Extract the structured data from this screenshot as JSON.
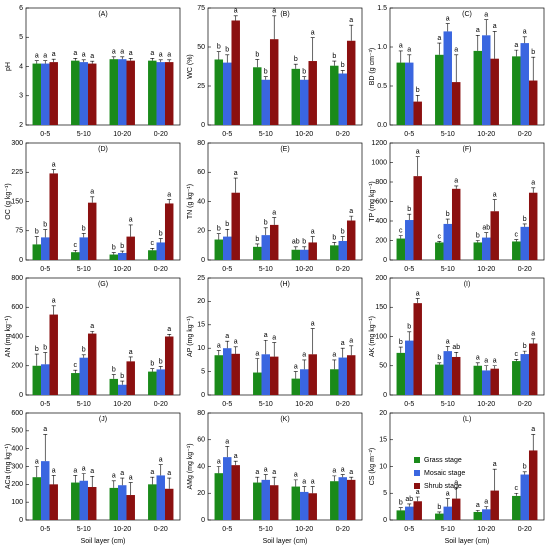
{
  "chart_data": [
    {
      "type": "bar",
      "title": "(A)",
      "y_label": "pH",
      "categories": [
        "0-5",
        "5-10",
        "10-20",
        "0-20"
      ],
      "ylim": [
        2,
        6
      ],
      "yticks": [
        2,
        3,
        4,
        5,
        6
      ],
      "series": [
        {
          "color": "#1a8a1a",
          "values": [
            4.1,
            4.2,
            4.25,
            4.2
          ],
          "errors": [
            0.1,
            0.08,
            0.08,
            0.08
          ],
          "letters": [
            "a",
            "a",
            "a",
            "a"
          ]
        },
        {
          "color": "#3a66e0",
          "values": [
            4.1,
            4.15,
            4.25,
            4.15
          ],
          "errors": [
            0.1,
            0.08,
            0.08,
            0.08
          ],
          "letters": [
            "a",
            "a",
            "a",
            "a"
          ]
        },
        {
          "color": "#8b1010",
          "values": [
            4.15,
            4.1,
            4.2,
            4.15
          ],
          "errors": [
            0.1,
            0.08,
            0.08,
            0.08
          ],
          "letters": [
            "a",
            "a",
            "a",
            "a"
          ]
        }
      ]
    },
    {
      "type": "bar",
      "title": "(B)",
      "y_label": "WC (%)",
      "categories": [
        "0-5",
        "5-10",
        "10-20",
        "0-20"
      ],
      "ylim": [
        0,
        75
      ],
      "yticks": [
        0,
        25,
        50,
        75
      ],
      "series": [
        {
          "color": "#1a8a1a",
          "values": [
            42,
            37,
            36,
            38
          ],
          "errors": [
            5,
            5,
            3,
            3
          ],
          "letters": [
            "b",
            "b",
            "b",
            "b"
          ]
        },
        {
          "color": "#3a66e0",
          "values": [
            40,
            29,
            29,
            33
          ],
          "errors": [
            5,
            2,
            2,
            2
          ],
          "letters": [
            "b",
            "b",
            "b",
            "b"
          ]
        },
        {
          "color": "#8b1010",
          "values": [
            67,
            55,
            41,
            54
          ],
          "errors": [
            3,
            15,
            15,
            10
          ],
          "letters": [
            "a",
            "a",
            "a",
            "a"
          ]
        }
      ]
    },
    {
      "type": "bar",
      "title": "(C)",
      "y_label": "BD (g cm⁻³)",
      "categories": [
        "0-5",
        "5-10",
        "10-20",
        "0-20"
      ],
      "ylim": [
        0,
        1.5
      ],
      "yticks": [
        {
          "value": 0,
          "label": "0.0"
        },
        {
          "value": 0.5,
          "label": "0.5"
        },
        {
          "value": 1,
          "label": "1.0"
        },
        {
          "value": 1.5,
          "label": "1.5"
        }
      ],
      "series": [
        {
          "color": "#1a8a1a",
          "values": [
            0.8,
            0.9,
            0.95,
            0.88
          ],
          "errors": [
            0.15,
            0.15,
            0.2,
            0.08
          ],
          "letters": [
            "a",
            "a",
            "a",
            "a"
          ]
        },
        {
          "color": "#3a66e0",
          "values": [
            0.8,
            1.2,
            1.15,
            1.05
          ],
          "errors": [
            0.1,
            0.1,
            0.2,
            0.08
          ],
          "letters": [
            "a",
            "a",
            "a",
            "a"
          ]
        },
        {
          "color": "#8b1010",
          "values": [
            0.3,
            0.55,
            0.85,
            0.57
          ],
          "errors": [
            0.08,
            0.35,
            0.35,
            0.3
          ],
          "letters": [
            "b",
            "a",
            "a",
            "b"
          ]
        }
      ]
    },
    {
      "type": "bar",
      "title": "(D)",
      "y_label": "OC (g kg⁻¹)",
      "categories": [
        "0-5",
        "5-10",
        "10-20",
        "0-20"
      ],
      "ylim": [
        0,
        300
      ],
      "yticks": [
        0,
        75,
        150,
        225,
        300
      ],
      "series": [
        {
          "color": "#1a8a1a",
          "values": [
            40,
            20,
            14,
            25
          ],
          "errors": [
            20,
            5,
            5,
            5
          ],
          "letters": [
            "b",
            "c",
            "b",
            "c"
          ]
        },
        {
          "color": "#3a66e0",
          "values": [
            58,
            58,
            18,
            45
          ],
          "errors": [
            20,
            10,
            5,
            10
          ],
          "letters": [
            "b",
            "b",
            "b",
            "b"
          ]
        },
        {
          "color": "#8b1010",
          "values": [
            222,
            147,
            60,
            145
          ],
          "errors": [
            10,
            15,
            30,
            10
          ],
          "letters": [
            "a",
            "a",
            "a",
            "a"
          ]
        }
      ]
    },
    {
      "type": "bar",
      "title": "(E)",
      "y_label": "TN (g kg⁻¹)",
      "categories": [
        "0-5",
        "5-10",
        "10-20",
        "0-20"
      ],
      "ylim": [
        0,
        80
      ],
      "yticks": [
        0,
        20,
        40,
        60,
        80
      ],
      "series": [
        {
          "color": "#1a8a1a",
          "values": [
            14,
            9,
            7,
            10
          ],
          "errors": [
            4,
            2,
            2,
            2
          ],
          "letters": [
            "b",
            "b",
            "ab",
            "b"
          ]
        },
        {
          "color": "#3a66e0",
          "values": [
            16,
            17,
            7,
            13
          ],
          "errors": [
            5,
            5,
            2,
            3
          ],
          "letters": [
            "b",
            "b",
            "b",
            "b"
          ]
        },
        {
          "color": "#8b1010",
          "values": [
            46,
            24,
            12,
            27
          ],
          "errors": [
            10,
            5,
            4,
            3
          ],
          "letters": [
            "a",
            "a",
            "a",
            "a"
          ]
        }
      ]
    },
    {
      "type": "bar",
      "title": "(F)",
      "y_label": "TP (mg kg⁻¹)",
      "categories": [
        "0-5",
        "5-10",
        "10-20",
        "0-20"
      ],
      "ylim": [
        0,
        1200
      ],
      "yticks": [
        0,
        200,
        400,
        600,
        800,
        1000,
        1200
      ],
      "series": [
        {
          "color": "#1a8a1a",
          "values": [
            220,
            180,
            180,
            190
          ],
          "errors": [
            30,
            10,
            20,
            20
          ],
          "letters": [
            "c",
            "c",
            "b",
            "c"
          ]
        },
        {
          "color": "#3a66e0",
          "values": [
            410,
            370,
            230,
            340
          ],
          "errors": [
            60,
            50,
            50,
            30
          ],
          "letters": [
            "b",
            "b",
            "ab",
            "b"
          ]
        },
        {
          "color": "#8b1010",
          "values": [
            860,
            730,
            500,
            690
          ],
          "errors": [
            200,
            30,
            120,
            50
          ],
          "letters": [
            "a",
            "a",
            "a",
            "a"
          ]
        }
      ]
    },
    {
      "type": "bar",
      "title": "(G)",
      "y_label": "AN (mg kg⁻¹)",
      "categories": [
        "0-5",
        "5-10",
        "10-20",
        "0-20"
      ],
      "ylim": [
        0,
        800
      ],
      "yticks": [
        0,
        200,
        400,
        600,
        800
      ],
      "series": [
        {
          "color": "#1a8a1a",
          "values": [
            200,
            150,
            110,
            160
          ],
          "errors": [
            80,
            20,
            30,
            20
          ],
          "letters": [
            "b",
            "c",
            "b",
            "b"
          ]
        },
        {
          "color": "#3a66e0",
          "values": [
            210,
            255,
            70,
            175
          ],
          "errors": [
            80,
            20,
            25,
            20
          ],
          "letters": [
            "b",
            "b",
            "b",
            "b"
          ]
        },
        {
          "color": "#8b1010",
          "values": [
            550,
            420,
            230,
            400
          ],
          "errors": [
            60,
            15,
            30,
            15
          ],
          "letters": [
            "a",
            "a",
            "a",
            "a"
          ]
        }
      ]
    },
    {
      "type": "bar",
      "title": "(H)",
      "y_label": "AP (mg kg⁻¹)",
      "categories": [
        "0-5",
        "5-10",
        "10-20",
        "0-20"
      ],
      "ylim": [
        0,
        25
      ],
      "yticks": [
        0,
        5,
        10,
        15,
        20,
        25
      ],
      "series": [
        {
          "color": "#1a8a1a",
          "values": [
            8.5,
            4.8,
            3.5,
            5.5
          ],
          "errors": [
            1,
            3,
            1.5,
            2
          ],
          "letters": [
            "a",
            "a",
            "a",
            "a"
          ]
        },
        {
          "color": "#3a66e0",
          "values": [
            10,
            8.7,
            5.5,
            8
          ],
          "errors": [
            1.5,
            3,
            2,
            2
          ],
          "letters": [
            "a",
            "a",
            "a",
            "a"
          ]
        },
        {
          "color": "#8b1010",
          "values": [
            8.8,
            8.2,
            8.7,
            8.5
          ],
          "errors": [
            1.5,
            3,
            5.5,
            2
          ],
          "letters": [
            "a",
            "a",
            "a",
            "a"
          ]
        }
      ]
    },
    {
      "type": "bar",
      "title": "(I)",
      "y_label": "AK (mg kg⁻¹)",
      "categories": [
        "0-5",
        "5-10",
        "10-20",
        "0-20"
      ],
      "ylim": [
        0,
        200
      ],
      "yticks": [
        0,
        50,
        100,
        150,
        200
      ],
      "series": [
        {
          "color": "#1a8a1a",
          "values": [
            72,
            52,
            50,
            58
          ],
          "errors": [
            10,
            3,
            5,
            3
          ],
          "letters": [
            "b",
            "b",
            "a",
            "c"
          ]
        },
        {
          "color": "#3a66e0",
          "values": [
            93,
            75,
            42,
            70
          ],
          "errors": [
            15,
            8,
            8,
            5
          ],
          "letters": [
            "b",
            "a",
            "a",
            "b"
          ]
        },
        {
          "color": "#8b1010",
          "values": [
            157,
            65,
            45,
            88
          ],
          "errors": [
            8,
            8,
            5,
            8
          ],
          "letters": [
            "a",
            "ab",
            "a",
            "a"
          ]
        }
      ]
    },
    {
      "type": "bar",
      "title": "(J)",
      "y_label": "ACa (mg kg⁻¹)",
      "x_label": "Soil layer (cm)",
      "categories": [
        "0-5",
        "5-10",
        "10-20",
        "0-20"
      ],
      "ylim": [
        0,
        600
      ],
      "yticks": [
        0,
        100,
        200,
        300,
        400,
        500,
        600
      ],
      "series": [
        {
          "color": "#1a8a1a",
          "values": [
            240,
            210,
            180,
            200
          ],
          "errors": [
            60,
            40,
            40,
            40
          ],
          "letters": [
            "a",
            "a",
            "a",
            "a"
          ]
        },
        {
          "color": "#3a66e0",
          "values": [
            330,
            220,
            195,
            250
          ],
          "errors": [
            150,
            40,
            40,
            60
          ],
          "letters": [
            "a",
            "a",
            "a",
            "a"
          ]
        },
        {
          "color": "#8b1010",
          "values": [
            200,
            185,
            140,
            175
          ],
          "errors": [
            50,
            60,
            70,
            60
          ],
          "letters": [
            "a",
            "a",
            "a",
            "a"
          ]
        }
      ]
    },
    {
      "type": "bar",
      "title": "(K)",
      "y_label": "AMg (mg kg⁻¹)",
      "x_label": "Soil layer (cm)",
      "categories": [
        "0-5",
        "5-10",
        "10-20",
        "0-20"
      ],
      "ylim": [
        0,
        80
      ],
      "yticks": [
        0,
        20,
        40,
        60,
        80
      ],
      "series": [
        {
          "color": "#1a8a1a",
          "values": [
            35,
            28,
            25,
            29
          ],
          "errors": [
            5,
            4,
            5,
            4
          ],
          "letters": [
            "a",
            "a",
            "a",
            "a"
          ]
        },
        {
          "color": "#3a66e0",
          "values": [
            47,
            30,
            21,
            32
          ],
          "errors": [
            8,
            4,
            4,
            2
          ],
          "letters": [
            "a",
            "a",
            "a",
            "a"
          ]
        },
        {
          "color": "#8b1010",
          "values": [
            41,
            26,
            20,
            30
          ],
          "errors": [
            3,
            6,
            5,
            2
          ],
          "letters": [
            "a",
            "a",
            "a",
            "a"
          ]
        }
      ]
    },
    {
      "type": "bar",
      "title": "(L)",
      "y_label": "CS (kg m⁻²)",
      "x_label": "Soil layer (cm)",
      "categories": [
        "0-5",
        "5-10",
        "10-20",
        "0-20"
      ],
      "ylim": [
        0,
        20
      ],
      "yticks": [
        0,
        5,
        10,
        15,
        20
      ],
      "series": [
        {
          "name": "Grass stage",
          "color": "#1a8a1a",
          "values": [
            1.8,
            1.2,
            1.5,
            4.5
          ],
          "errors": [
            0.5,
            0.3,
            0.3,
            0.5
          ],
          "letters": [
            "b",
            "b",
            "a",
            "c"
          ]
        },
        {
          "name": "Mosaic stage",
          "color": "#3a66e0",
          "values": [
            2.5,
            2.5,
            2,
            8.5
          ],
          "errors": [
            0.5,
            1.5,
            0.5,
            0.5
          ],
          "letters": [
            "ab",
            "a",
            "a",
            "b"
          ]
        },
        {
          "name": "Shrub stage",
          "color": "#8b1010",
          "values": [
            3.5,
            4,
            5.5,
            13
          ],
          "errors": [
            0.8,
            2,
            4,
            3
          ],
          "letters": [
            "a",
            "a",
            "a",
            "a"
          ]
        }
      ]
    }
  ]
}
